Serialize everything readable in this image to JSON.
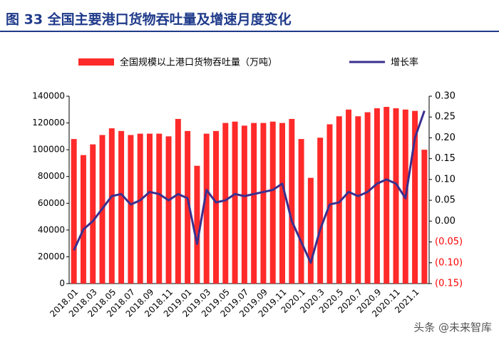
{
  "chart_data": {
    "type": "bar_line",
    "title": "图 33 全国主要港口货物吞吐量及增速月度变化",
    "categories": [
      "2018.01",
      null,
      "2018.03",
      null,
      "2018.05",
      null,
      "2018.07",
      null,
      "2018.09",
      null,
      "2018.11",
      null,
      "2019.01",
      null,
      "2019.03",
      null,
      "2019.05",
      null,
      "2019.07",
      null,
      "2019.09",
      null,
      "2019.11",
      null,
      "2020.1",
      null,
      "2020.3",
      null,
      "2020.5",
      null,
      "2020.7",
      null,
      "2020.9",
      null,
      "2020.11",
      null,
      "2021.1",
      null
    ],
    "series": [
      {
        "name": "全国规模以上港口货物吞吐量（万吨）",
        "color": "#ff2a2a",
        "axis": "y",
        "type": "bar",
        "values": [
          108000,
          96000,
          104000,
          111000,
          116000,
          114000,
          111000,
          112000,
          112000,
          112000,
          110000,
          123000,
          114000,
          88000,
          112000,
          114000,
          120000,
          121000,
          118000,
          120000,
          120000,
          121000,
          120000,
          123000,
          108000,
          79000,
          109000,
          119000,
          125000,
          130000,
          125000,
          128000,
          131000,
          132000,
          131000,
          130000,
          129000,
          100000
        ]
      },
      {
        "name": "增长率",
        "color": "#3b2f8f",
        "axis": "y2",
        "type": "line",
        "values": [
          -0.07,
          -0.02,
          0.0,
          0.03,
          0.06,
          0.065,
          0.04,
          0.05,
          0.07,
          0.065,
          0.05,
          0.065,
          0.055,
          -0.055,
          0.075,
          0.045,
          0.05,
          0.065,
          0.06,
          0.065,
          0.07,
          0.075,
          0.09,
          0.0,
          -0.05,
          -0.1,
          -0.02,
          0.04,
          0.045,
          0.07,
          0.06,
          0.07,
          0.09,
          0.1,
          0.09,
          0.055,
          0.2,
          0.265
        ]
      }
    ],
    "ylim": [
      0,
      140000
    ],
    "yticks": [
      0,
      20000,
      40000,
      60000,
      80000,
      100000,
      120000,
      140000
    ],
    "y2lim": [
      -0.15,
      0.3
    ],
    "y2ticks": [
      {
        "value": -0.15,
        "label": "(0.15)"
      },
      {
        "value": -0.1,
        "label": "(0.10)"
      },
      {
        "value": -0.05,
        "label": "(0.05)"
      },
      {
        "value": 0,
        "label": "0.00"
      },
      {
        "value": 0.05,
        "label": "0.05"
      },
      {
        "value": 0.1,
        "label": "0.10"
      },
      {
        "value": 0.15,
        "label": "0.15"
      },
      {
        "value": 0.2,
        "label": "0.20"
      },
      {
        "value": 0.25,
        "label": "0.25"
      },
      {
        "value": 0.3,
        "label": "0.30"
      }
    ],
    "y2tick_color_negative": "#ff0000",
    "legend": "top",
    "watermark": "头条 @未来智库"
  }
}
